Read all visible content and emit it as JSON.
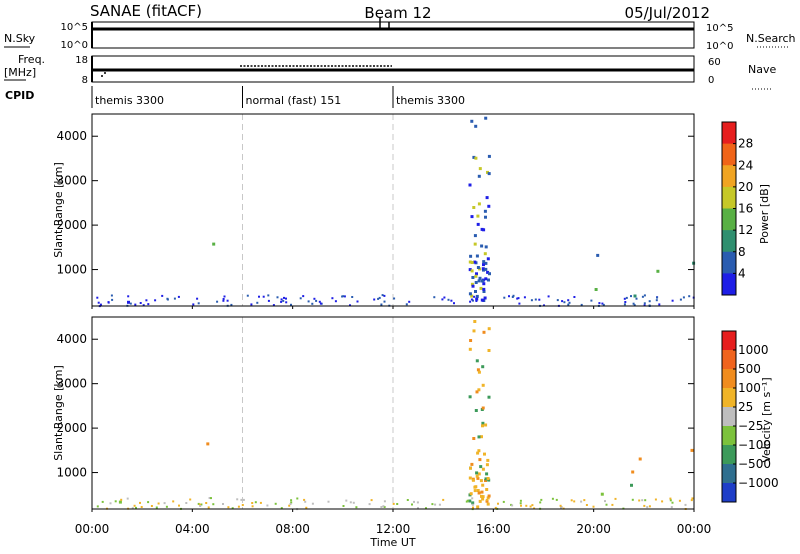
{
  "header": {
    "station": "SANAE (fitACF)",
    "beam": "Beam 12",
    "date": "05/Jul/2012"
  },
  "top_panels": {
    "noise_left": "N.Sky",
    "noise_right": "N.Search",
    "noise_ticks_left": [
      "10^5",
      "10^0"
    ],
    "noise_ticks_right": [
      "10^5",
      "10^0"
    ],
    "freq_label": "Freq.",
    "freq_unit": "[MHz]",
    "freq_ticks": [
      "18",
      "8"
    ],
    "nave_label": "Nave",
    "nave_ticks": [
      "60",
      "0"
    ],
    "cpid_label": "CPID",
    "modes": [
      {
        "label": "themis 3300",
        "start_hour": 0,
        "end_hour": 6
      },
      {
        "label": "normal (fast) 151",
        "start_hour": 6,
        "end_hour": 12
      },
      {
        "label": "themis 3300",
        "start_hour": 12,
        "end_hour": 24
      }
    ]
  },
  "chart_data": [
    {
      "type": "heatmap",
      "name": "power",
      "ylabel": "Slant Range [km]",
      "yticks": [
        "4000",
        "3000",
        "2000",
        "1000"
      ],
      "ytick_values": [
        4000,
        3000,
        2000,
        1000
      ],
      "ylim": [
        180,
        4500
      ],
      "xlim": [
        0,
        24
      ],
      "colorbar": {
        "label": "Power [dB]",
        "ticks": [
          "28",
          "24",
          "20",
          "16",
          "12",
          "8",
          "4"
        ],
        "tick_values": [
          28,
          24,
          20,
          16,
          12,
          8,
          4
        ],
        "colors": [
          "#1e1ee6",
          "#2a5cb0",
          "#2f8f6f",
          "#58b044",
          "#c6c828",
          "#f0a422",
          "#f06418",
          "#e61e1e"
        ]
      },
      "regions": [
        {
          "t": [
            2.5,
            6.0
          ],
          "r": [
            1500,
            1850
          ],
          "level": "mixed-blue-green"
        },
        {
          "t": [
            0.2,
            1.4
          ],
          "r": [
            250,
            1100
          ],
          "level": "blue-green"
        },
        {
          "t": [
            15.0,
            15.8
          ],
          "r": [
            250,
            4450
          ],
          "level": "blue"
        },
        {
          "t": [
            19.5,
            24.0
          ],
          "r": [
            400,
            1600
          ],
          "level": "blue-green"
        }
      ]
    },
    {
      "type": "heatmap",
      "name": "velocity",
      "ylabel": "Slant Range [km]",
      "yticks": [
        "4000",
        "3000",
        "2000",
        "1000"
      ],
      "ytick_values": [
        4000,
        3000,
        2000,
        1000
      ],
      "ylim": [
        180,
        4500
      ],
      "xlim": [
        0,
        24
      ],
      "colorbar": {
        "label": "Velocity [m s⁻¹]",
        "ticks": [
          "1000",
          "500",
          "100",
          "25",
          "−25",
          "−100",
          "−500",
          "−1000"
        ],
        "tick_values": [
          1000,
          500,
          100,
          25,
          -25,
          -100,
          -500,
          -1000
        ],
        "colors": [
          "#1e3ec8",
          "#2f6f8f",
          "#3c9a5a",
          "#7cc23c",
          "#bebebe",
          "#f0b428",
          "#f08c1e",
          "#f0641e",
          "#e61e1e"
        ]
      },
      "regions": [
        {
          "t": [
            2.5,
            6.0
          ],
          "r": [
            1500,
            1850
          ],
          "level": "orange-green"
        },
        {
          "t": [
            0.2,
            1.4
          ],
          "r": [
            250,
            1100
          ],
          "level": "green"
        },
        {
          "t": [
            15.0,
            15.8
          ],
          "r": [
            250,
            4450
          ],
          "level": "orange"
        },
        {
          "t": [
            19.5,
            24.0
          ],
          "r": [
            400,
            1600
          ],
          "level": "orange-green"
        }
      ]
    }
  ],
  "x_axis": {
    "label": "Time UT",
    "ticks": [
      "00:00",
      "04:00",
      "08:00",
      "12:00",
      "16:00",
      "20:00",
      "00:00"
    ],
    "tick_hours": [
      0,
      4,
      8,
      12,
      16,
      20,
      24
    ]
  }
}
